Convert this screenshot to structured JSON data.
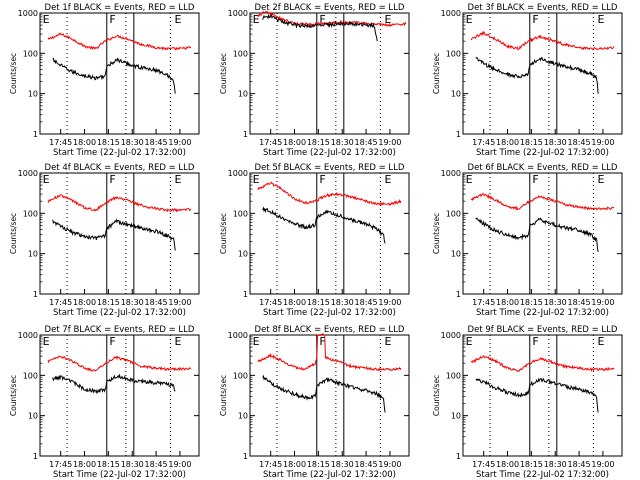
{
  "chart_data": [
    {
      "type": "line",
      "title": "Det 1f BLACK = Events, RED = LLD",
      "ylabel": "Counts/sec",
      "xlabel": "Start Time (22-Jul-02 17:32:00)",
      "ylim": [
        1,
        1000
      ],
      "y_scale": "log",
      "x_ticks": [
        "17:45",
        "18:00",
        "18:15",
        "18:30",
        "18:45",
        "19:00"
      ],
      "y_ticks": [
        "1",
        "10",
        "100",
        "1000"
      ],
      "markers": [
        "E",
        "F",
        "E"
      ],
      "series": [
        {
          "name": "LLD",
          "color": "#ff0000",
          "x": [
            "17:37",
            "17:45",
            "17:52",
            "18:00",
            "18:07",
            "18:13",
            "18:20",
            "18:27",
            "18:35",
            "18:45",
            "18:52",
            "19:00",
            "19:07"
          ],
          "y": [
            220,
            300,
            230,
            150,
            130,
            200,
            270,
            230,
            170,
            140,
            130,
            130,
            140
          ]
        },
        {
          "name": "Events",
          "color": "#000000",
          "x": [
            "17:40",
            "17:45",
            "17:52",
            "18:00",
            "18:07",
            "18:13",
            "18:14",
            "18:20",
            "18:27",
            "18:35",
            "18:45",
            "18:52",
            "18:56",
            "18:57"
          ],
          "y": [
            70,
            50,
            35,
            28,
            24,
            28,
            45,
            70,
            55,
            45,
            38,
            30,
            20,
            10
          ]
        }
      ]
    },
    {
      "type": "line",
      "title": "Det 2f BLACK = Events, RED = LLD",
      "ylabel": "Counts/sec",
      "xlabel": "Start Time (22-Jul-02 17:32:00)",
      "ylim": [
        1,
        1000
      ],
      "y_scale": "log",
      "x_ticks": [
        "17:45",
        "18:00",
        "18:15",
        "18:30",
        "18:45",
        "19:00"
      ],
      "y_ticks": [
        "1",
        "10",
        "100",
        "1000"
      ],
      "markers": [
        "E",
        "F",
        "E"
      ],
      "series": [
        {
          "name": "LLD",
          "color": "#ff0000",
          "x": [
            "17:37",
            "17:42",
            "17:50",
            "18:00",
            "18:10",
            "18:20",
            "18:30",
            "18:40",
            "18:50",
            "19:00",
            "19:10"
          ],
          "y": [
            850,
            1100,
            750,
            550,
            520,
            560,
            600,
            570,
            530,
            500,
            540
          ]
        },
        {
          "name": "Events",
          "color": "#000000",
          "x": [
            "17:40",
            "17:45",
            "17:50",
            "18:00",
            "18:10",
            "18:20",
            "18:30",
            "18:40",
            "18:50",
            "18:52"
          ],
          "y": [
            750,
            850,
            650,
            500,
            480,
            510,
            550,
            520,
            490,
            200
          ]
        }
      ]
    },
    {
      "type": "line",
      "title": "Det 3f BLACK = Events, RED = LLD",
      "ylabel": "Counts/sec",
      "xlabel": "Start Time (22-Jul-02 17:32:00)",
      "ylim": [
        1,
        1000
      ],
      "y_scale": "log",
      "x_ticks": [
        "17:45",
        "18:00",
        "18:15",
        "18:30",
        "18:45",
        "19:00"
      ],
      "y_ticks": [
        "1",
        "10",
        "100",
        "1000"
      ],
      "markers": [
        "E",
        "F",
        "E"
      ],
      "series": [
        {
          "name": "LLD",
          "color": "#ff0000",
          "x": [
            "17:37",
            "17:45",
            "17:52",
            "18:00",
            "18:07",
            "18:13",
            "18:20",
            "18:27",
            "18:35",
            "18:45",
            "18:52",
            "19:00",
            "19:07"
          ],
          "y": [
            220,
            320,
            230,
            150,
            130,
            200,
            260,
            220,
            170,
            140,
            130,
            130,
            140
          ]
        },
        {
          "name": "Events",
          "color": "#000000",
          "x": [
            "17:40",
            "17:45",
            "17:52",
            "18:00",
            "18:07",
            "18:13",
            "18:14",
            "18:20",
            "18:27",
            "18:35",
            "18:45",
            "18:52",
            "18:56",
            "18:57"
          ],
          "y": [
            80,
            55,
            40,
            30,
            26,
            30,
            50,
            75,
            60,
            48,
            40,
            32,
            25,
            10
          ]
        }
      ]
    },
    {
      "type": "line",
      "title": "Det 4f BLACK = Events, RED = LLD",
      "ylabel": "Counts/sec",
      "xlabel": "Start Time (22-Jul-02 17:32:00)",
      "ylim": [
        1,
        1000
      ],
      "y_scale": "log",
      "x_ticks": [
        "17:45",
        "18:00",
        "18:15",
        "18:30",
        "18:45",
        "19:00"
      ],
      "y_ticks": [
        "1",
        "10",
        "100",
        "1000"
      ],
      "markers": [
        "E",
        "F",
        "E"
      ],
      "series": [
        {
          "name": "LLD",
          "color": "#ff0000",
          "x": [
            "17:37",
            "17:45",
            "17:52",
            "18:00",
            "18:07",
            "18:13",
            "18:20",
            "18:27",
            "18:35",
            "18:45",
            "18:52",
            "19:00",
            "19:07"
          ],
          "y": [
            200,
            280,
            210,
            140,
            120,
            180,
            250,
            210,
            160,
            130,
            120,
            120,
            125
          ]
        },
        {
          "name": "Events",
          "color": "#000000",
          "x": [
            "17:40",
            "17:45",
            "17:52",
            "18:00",
            "18:07",
            "18:13",
            "18:14",
            "18:20",
            "18:27",
            "18:35",
            "18:45",
            "18:52",
            "18:56",
            "18:57"
          ],
          "y": [
            65,
            48,
            34,
            27,
            24,
            27,
            42,
            65,
            52,
            43,
            36,
            28,
            22,
            12
          ]
        }
      ]
    },
    {
      "type": "line",
      "title": "Det 5f BLACK = Events, RED = LLD",
      "ylabel": "Counts/sec",
      "xlabel": "Start Time (22-Jul-02 17:32:00)",
      "ylim": [
        1,
        1000
      ],
      "y_scale": "log",
      "x_ticks": [
        "17:45",
        "18:00",
        "18:15",
        "18:30",
        "18:45",
        "19:00"
      ],
      "y_ticks": [
        "1",
        "10",
        "100",
        "1000"
      ],
      "markers": [
        "E",
        "F",
        "E"
      ],
      "series": [
        {
          "name": "LLD",
          "color": "#ff0000",
          "x": [
            "17:37",
            "17:45",
            "17:52",
            "18:00",
            "18:07",
            "18:13",
            "18:20",
            "18:27",
            "18:35",
            "18:45",
            "18:52",
            "19:00",
            "19:07"
          ],
          "y": [
            400,
            560,
            400,
            230,
            180,
            200,
            280,
            300,
            260,
            200,
            170,
            170,
            200
          ]
        },
        {
          "name": "Events",
          "color": "#000000",
          "x": [
            "17:40",
            "17:45",
            "17:52",
            "18:00",
            "18:07",
            "18:13",
            "18:14",
            "18:20",
            "18:27",
            "18:35",
            "18:45",
            "18:52",
            "18:56",
            "18:57"
          ],
          "y": [
            130,
            110,
            80,
            55,
            45,
            50,
            80,
            110,
            90,
            70,
            55,
            40,
            28,
            18
          ]
        }
      ]
    },
    {
      "type": "line",
      "title": "Det 6f BLACK = Events, RED = LLD",
      "ylabel": "Counts/sec",
      "xlabel": "Start Time (22-Jul-02 17:32:00)",
      "ylim": [
        1,
        1000
      ],
      "y_scale": "log",
      "x_ticks": [
        "17:45",
        "18:00",
        "18:15",
        "18:30",
        "18:45",
        "19:00"
      ],
      "y_ticks": [
        "1",
        "10",
        "100",
        "1000"
      ],
      "markers": [
        "E",
        "F",
        "E"
      ],
      "series": [
        {
          "name": "LLD",
          "color": "#ff0000",
          "x": [
            "17:37",
            "17:45",
            "17:52",
            "18:00",
            "18:07",
            "18:13",
            "18:20",
            "18:27",
            "18:35",
            "18:45",
            "18:52",
            "19:00",
            "19:07"
          ],
          "y": [
            220,
            300,
            220,
            150,
            130,
            190,
            260,
            220,
            170,
            140,
            130,
            130,
            135
          ]
        },
        {
          "name": "Events",
          "color": "#000000",
          "x": [
            "17:40",
            "17:45",
            "17:52",
            "18:00",
            "18:07",
            "18:13",
            "18:14",
            "18:20",
            "18:27",
            "18:35",
            "18:45",
            "18:52",
            "18:56",
            "18:57"
          ],
          "y": [
            75,
            55,
            38,
            29,
            25,
            29,
            48,
            70,
            56,
            45,
            38,
            30,
            22,
            11
          ]
        }
      ]
    },
    {
      "type": "line",
      "title": "Det 7f BLACK = Events, RED = LLD",
      "ylabel": "Counts/sec",
      "xlabel": "Start Time (22-Jul-02 17:32:00)",
      "ylim": [
        1,
        1000
      ],
      "y_scale": "log",
      "x_ticks": [
        "17:45",
        "18:00",
        "18:15",
        "18:30",
        "18:45",
        "19:00"
      ],
      "y_ticks": [
        "1",
        "10",
        "100",
        "1000"
      ],
      "markers": [
        "E",
        "F",
        "E"
      ],
      "series": [
        {
          "name": "LLD",
          "color": "#ff0000",
          "x": [
            "17:37",
            "17:45",
            "17:52",
            "18:00",
            "18:07",
            "18:13",
            "18:20",
            "18:27",
            "18:35",
            "18:45",
            "18:52",
            "19:00",
            "19:07"
          ],
          "y": [
            220,
            300,
            230,
            150,
            130,
            200,
            280,
            230,
            170,
            150,
            140,
            145,
            150
          ]
        },
        {
          "name": "Events",
          "color": "#000000",
          "x": [
            "17:40",
            "17:45",
            "17:52",
            "18:00",
            "18:07",
            "18:13",
            "18:14",
            "18:20",
            "18:27",
            "18:35",
            "18:45",
            "18:52",
            "18:56",
            "18:57"
          ],
          "y": [
            80,
            90,
            70,
            45,
            40,
            45,
            70,
            95,
            80,
            70,
            65,
            60,
            55,
            40
          ]
        }
      ]
    },
    {
      "type": "line",
      "title": "Det 8f BLACK = Events, RED = LLD",
      "ylabel": "Counts/sec",
      "xlabel": "Start Time (22-Jul-02 17:32:00)",
      "ylim": [
        1,
        1000
      ],
      "y_scale": "log",
      "x_ticks": [
        "17:45",
        "18:00",
        "18:15",
        "18:30",
        "18:45",
        "19:00"
      ],
      "y_ticks": [
        "1",
        "10",
        "100",
        "1000"
      ],
      "markers": [
        "E",
        "F",
        "E"
      ],
      "series": [
        {
          "name": "LLD",
          "color": "#ff0000",
          "x": [
            "17:37",
            "17:45",
            "17:52",
            "18:00",
            "18:07",
            "18:13",
            "18:14",
            "18:15",
            "18:18",
            "18:19",
            "18:20",
            "18:27",
            "18:35",
            "18:45",
            "18:52",
            "19:00",
            "19:07"
          ],
          "y": [
            220,
            310,
            230,
            160,
            140,
            200,
            250,
            1000,
            1000,
            1000,
            270,
            220,
            170,
            150,
            140,
            140,
            150
          ]
        },
        {
          "name": "Events",
          "color": "#000000",
          "x": [
            "17:40",
            "17:45",
            "17:52",
            "18:00",
            "18:07",
            "18:13",
            "18:14",
            "18:20",
            "18:27",
            "18:35",
            "18:45",
            "18:52",
            "18:56",
            "18:57"
          ],
          "y": [
            90,
            65,
            45,
            34,
            28,
            30,
            55,
            80,
            65,
            52,
            42,
            34,
            25,
            12
          ]
        }
      ]
    },
    {
      "type": "line",
      "title": "Det 9f BLACK = Events, RED = LLD",
      "ylabel": "Counts/sec",
      "xlabel": "Start Time (22-Jul-02 17:32:00)",
      "ylim": [
        1,
        1000
      ],
      "y_scale": "log",
      "x_ticks": [
        "17:45",
        "18:00",
        "18:15",
        "18:30",
        "18:45",
        "19:00"
      ],
      "y_ticks": [
        "1",
        "10",
        "100",
        "1000"
      ],
      "markers": [
        "E",
        "F",
        "E"
      ],
      "series": [
        {
          "name": "LLD",
          "color": "#ff0000",
          "x": [
            "17:37",
            "17:45",
            "17:52",
            "18:00",
            "18:07",
            "18:13",
            "18:20",
            "18:27",
            "18:35",
            "18:45",
            "18:52",
            "19:00",
            "19:07"
          ],
          "y": [
            210,
            300,
            230,
            150,
            130,
            190,
            260,
            220,
            170,
            150,
            140,
            140,
            145
          ]
        },
        {
          "name": "Events",
          "color": "#000000",
          "x": [
            "17:40",
            "17:45",
            "17:52",
            "18:00",
            "18:07",
            "18:13",
            "18:14",
            "18:20",
            "18:27",
            "18:35",
            "18:45",
            "18:52",
            "18:56",
            "18:57"
          ],
          "y": [
            75,
            70,
            50,
            38,
            32,
            36,
            58,
            80,
            68,
            55,
            45,
            38,
            28,
            12
          ]
        }
      ]
    }
  ]
}
